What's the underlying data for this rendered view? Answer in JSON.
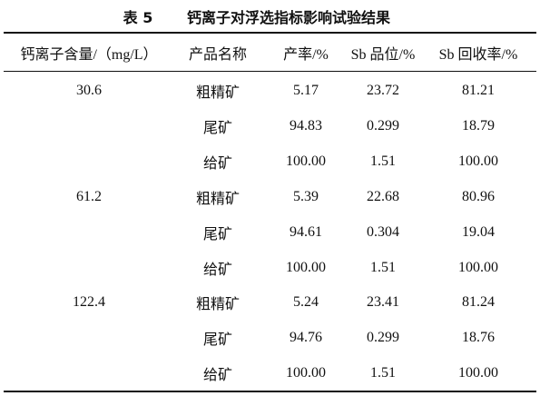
{
  "title": {
    "label": "表 5",
    "text": "钙离子对浮选指标影响试验结果"
  },
  "table": {
    "header": [
      "钙离子含量/（mg/L）",
      "产品名称",
      "产率/%",
      "Sb 品位/%",
      "Sb 回收率/%"
    ],
    "groups": [
      {
        "calcium": "30.6",
        "rows": [
          [
            "粗精矿",
            "5.17",
            "23.72",
            "81.21"
          ],
          [
            "尾矿",
            "94.83",
            "0.299",
            "18.79"
          ],
          [
            "给矿",
            "100.00",
            "1.51",
            "100.00"
          ]
        ]
      },
      {
        "calcium": "61.2",
        "rows": [
          [
            "粗精矿",
            "5.39",
            "22.68",
            "80.96"
          ],
          [
            "尾矿",
            "94.61",
            "0.304",
            "19.04"
          ],
          [
            "给矿",
            "100.00",
            "1.51",
            "100.00"
          ]
        ]
      },
      {
        "calcium": "122.4",
        "rows": [
          [
            "粗精矿",
            "5.24",
            "23.41",
            "81.24"
          ],
          [
            "尾矿",
            "94.76",
            "0.299",
            "18.76"
          ],
          [
            "给矿",
            "100.00",
            "1.51",
            "100.00"
          ]
        ]
      }
    ]
  }
}
